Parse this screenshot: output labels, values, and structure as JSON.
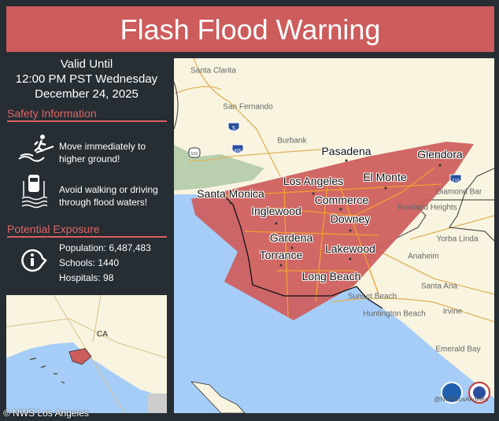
{
  "title": "Flash Flood Warning",
  "valid": {
    "line1": "Valid Until",
    "line2": "12:00 PM PST Wednesday",
    "line3": "December 24, 2025"
  },
  "safety": {
    "heading": "Safety Information",
    "items": [
      {
        "icon": "person-running-from-water-icon",
        "text1": "Move immediately to",
        "text2": "higher ground!"
      },
      {
        "icon": "car-in-flood-water-icon",
        "text1": "Avoid walking or driving",
        "text2": "through flood waters!"
      }
    ]
  },
  "exposure": {
    "heading": "Potential Exposure",
    "icon": "info-icon",
    "population": "Population: 6,487,483",
    "schools": "Schools: 1440",
    "hospitals": "Hospitals: 98"
  },
  "map": {
    "warning_color": "#cd5c5c",
    "water_color": "#a6cdf7",
    "major_cities": [
      "Pasadena",
      "Glendora",
      "El Monte",
      "Los Angeles",
      "Santa Monica",
      "Commerce",
      "Inglewood",
      "Downey",
      "Gardena",
      "Lakewood",
      "Torrance",
      "Long Beach"
    ],
    "minor_cities": [
      "Santa Clarita",
      "San Fernando",
      "Burbank",
      "Diamond Bar",
      "Rowland Heights",
      "Yorba Linda",
      "Anaheim",
      "Santa Ana",
      "Sunset Beach",
      "Huntington Beach",
      "Irvine",
      "Emerald Bay"
    ],
    "shields": [
      "5",
      "405",
      "101",
      "210"
    ],
    "handle": "@NWSLosAngeles"
  },
  "inset": {
    "label": "CA"
  },
  "credit": "© NWS Los Angeles"
}
